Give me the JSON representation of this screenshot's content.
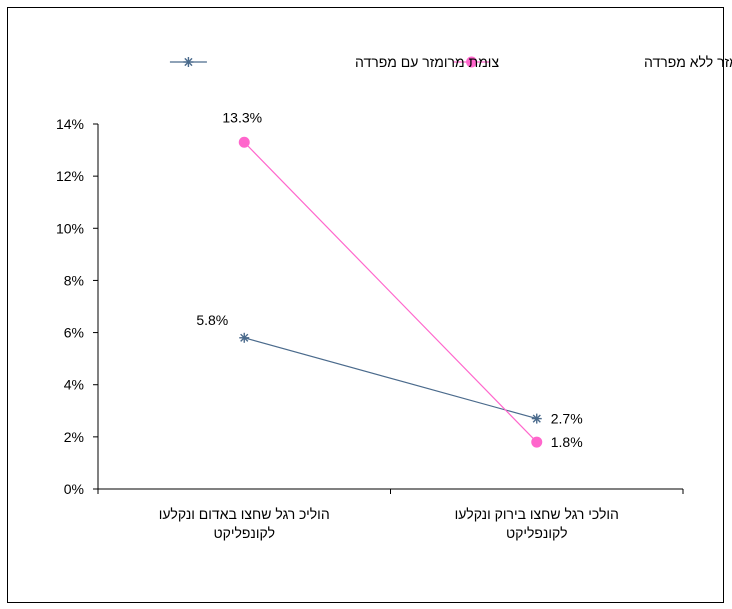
{
  "chart_data": {
    "type": "line",
    "categories": [
      [
        "הוליכ רגל שחצו באדום ונקלעו",
        "לקונפליקט"
      ],
      [
        "הולכי רגל שחצו בירוק ונקלעו",
        "לקונפליקט"
      ]
    ],
    "series": [
      {
        "name": "צומת מרומזר עם מפרדה",
        "values": [
          5.8,
          2.7
        ],
        "labels": [
          "5.8%",
          "2.7%"
        ],
        "color": "#4a6a8c",
        "marker": "asterisk"
      },
      {
        "name": "צומת מרומזר ללא  מפרדה",
        "values": [
          13.3,
          1.8
        ],
        "labels": [
          "13.3%",
          "1.8%"
        ],
        "color": "#ff66cc",
        "marker": "circle"
      }
    ],
    "ylim": [
      0,
      14
    ],
    "yticks": [
      0,
      2,
      4,
      6,
      8,
      10,
      12,
      14
    ],
    "ytick_labels": [
      "0%",
      "2%",
      "4%",
      "6%",
      "8%",
      "10%",
      "12%",
      "14%"
    ],
    "y_unit": "%",
    "legend_position": "top",
    "grid": false
  }
}
